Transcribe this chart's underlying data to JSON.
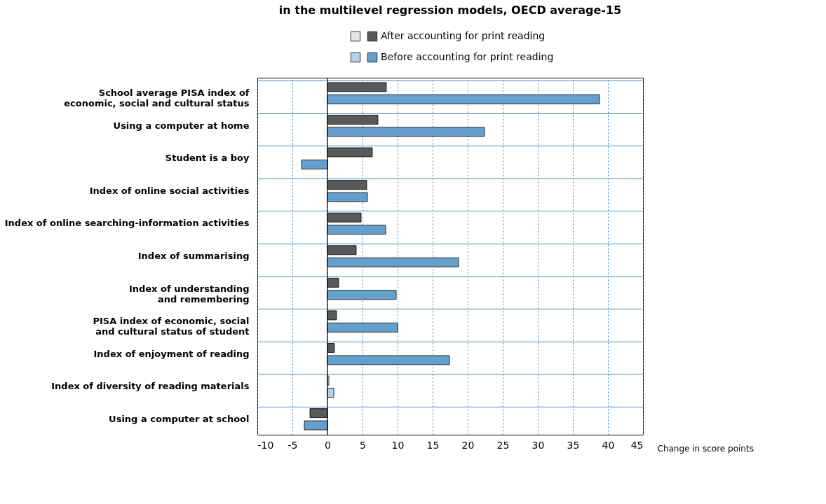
{
  "chart_data": {
    "type": "bar",
    "orientation": "horizontal",
    "title": "in the multilevel regression models, OECD average-15",
    "categories": [
      "School average PISA index of\neconomic, social and cultural status",
      "Using a computer at home",
      "Student is a boy",
      "Index of online social activities",
      "Index of online searching-information activities",
      "Index of summarising",
      "Index of understanding\nand remembering",
      "PISA index of economic, social\nand cultural status of student",
      "Index of enjoyment of reading",
      "Index of diversity of reading materials",
      "Using a computer at school"
    ],
    "series": [
      {
        "name": "After accounting for print reading",
        "color": "#595959",
        "colors": [
          "#595959",
          "#595959",
          "#595959",
          "#595959",
          "#595959",
          "#595959",
          "#595959",
          "#595959",
          "#595959",
          "#e3e4e4",
          "#595959"
        ],
        "values": [
          8.4,
          7.2,
          6.4,
          5.6,
          4.8,
          4.1,
          1.6,
          1.3,
          1.0,
          0.2,
          -2.5
        ]
      },
      {
        "name": "Before accounting for print reading",
        "color": "#659fcc",
        "colors": [
          "#659fcc",
          "#659fcc",
          "#659fcc",
          "#659fcc",
          "#659fcc",
          "#659fcc",
          "#659fcc",
          "#659fcc",
          "#659fcc",
          "#b4d1ea",
          "#659fcc"
        ],
        "values": [
          38.8,
          22.4,
          -3.7,
          5.7,
          8.3,
          18.7,
          9.8,
          10.0,
          17.4,
          0.9,
          -3.3
        ]
      }
    ],
    "xlabel": "Change in score points",
    "xlim": [
      -10,
      45
    ],
    "xticks": [
      -10,
      -5,
      0,
      5,
      10,
      15,
      20,
      25,
      30,
      35,
      40,
      45
    ],
    "ref_lines": [
      {
        "axis": "x",
        "value": 0,
        "color": "#000000"
      }
    ],
    "grid": true,
    "legend": "top"
  }
}
